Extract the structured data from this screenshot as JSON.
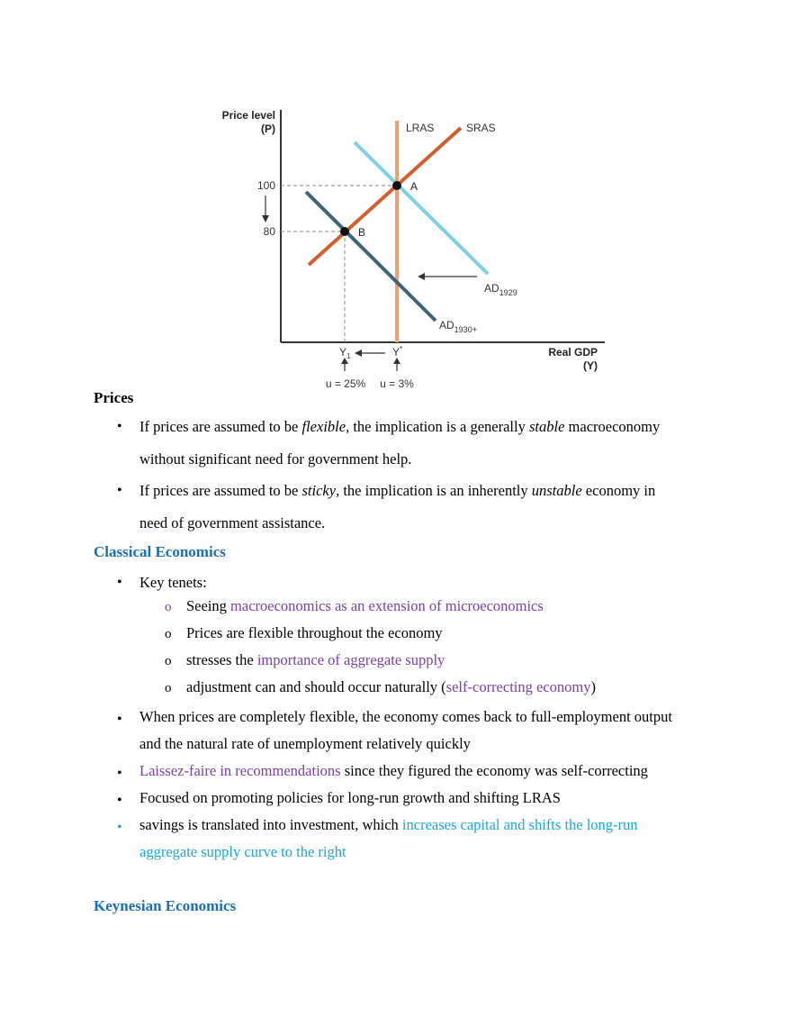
{
  "chart_data": {
    "type": "line",
    "ylabel_line1": "Price level",
    "ylabel_line2": "(P)",
    "xlabel_line1": "Real GDP",
    "xlabel_line2": "(Y)",
    "y_ticks": [
      "100",
      "80"
    ],
    "x_ticks": {
      "y1_base": "Y",
      "y1_sub": "1",
      "ystar_base": "Y",
      "ystar_sup": "*"
    },
    "series": [
      {
        "name": "LRAS",
        "label": "LRAS",
        "color": "#f0a070"
      },
      {
        "name": "SRAS",
        "label": "SRAS",
        "color": "#d2602e"
      },
      {
        "name": "AD1929",
        "label_base": "AD",
        "label_sub": "1929",
        "color": "#7fd0e6"
      },
      {
        "name": "AD1930+",
        "label_base": "AD",
        "label_sub": "1930+",
        "color": "#3d6478"
      }
    ],
    "points": [
      {
        "label": "A",
        "y": "100",
        "x": "Y*"
      },
      {
        "label": "B",
        "y": "80",
        "x": "Y1"
      }
    ],
    "annotations": {
      "u_left": "u = 25%",
      "u_right": "u = 3%"
    }
  },
  "sections": {
    "prices": {
      "title": "Prices",
      "bullet1": {
        "a": "If prices are assumed to be ",
        "b": "flexible",
        "c": ", the implication is a generally ",
        "d": "stable",
        "e": " macroeconomy",
        "line2": "without significant need for government help."
      },
      "bullet2": {
        "a": "If prices are assumed to be ",
        "b": "sticky",
        "c": ", the implication is an inherently ",
        "d": "unstable",
        "e": " economy in",
        "line2": "need of government assistance."
      }
    },
    "classical": {
      "title": "Classical Economics",
      "key_tenets": "Key tenets:",
      "sub1": {
        "a": "Seeing ",
        "b": "macroeconomics as an extension of microeconomics"
      },
      "sub2": "Prices are flexible throughout the economy",
      "sub3": {
        "a": "stresses the ",
        "b": "importance of aggregate supply"
      },
      "sub4": {
        "a": "adjustment can and should occur naturally (",
        "b": "self-correcting economy",
        "c": ")"
      },
      "bullet2": {
        "line1": "When prices are completely flexible, the economy comes back to full-employment output",
        "line2": "and the natural rate of unemployment relatively quickly"
      },
      "bullet3": {
        "a": "Laissez-faire in recommendations",
        "b": " since they figured the economy was self-correcting"
      },
      "bullet4": "Focused on promoting policies for long-run growth and shifting LRAS",
      "bullet5": {
        "a": "savings is translated into investment, which ",
        "b": "increases capital and shifts the long-run",
        "line2": "aggregate supply curve to the right"
      }
    },
    "keynesian": {
      "title": "Keynesian Economics"
    }
  },
  "colors": {
    "heading_blue": "#1a6fb8",
    "highlight_purple": "#7a3fa8",
    "highlight_cyan": "#1aa6dc"
  }
}
